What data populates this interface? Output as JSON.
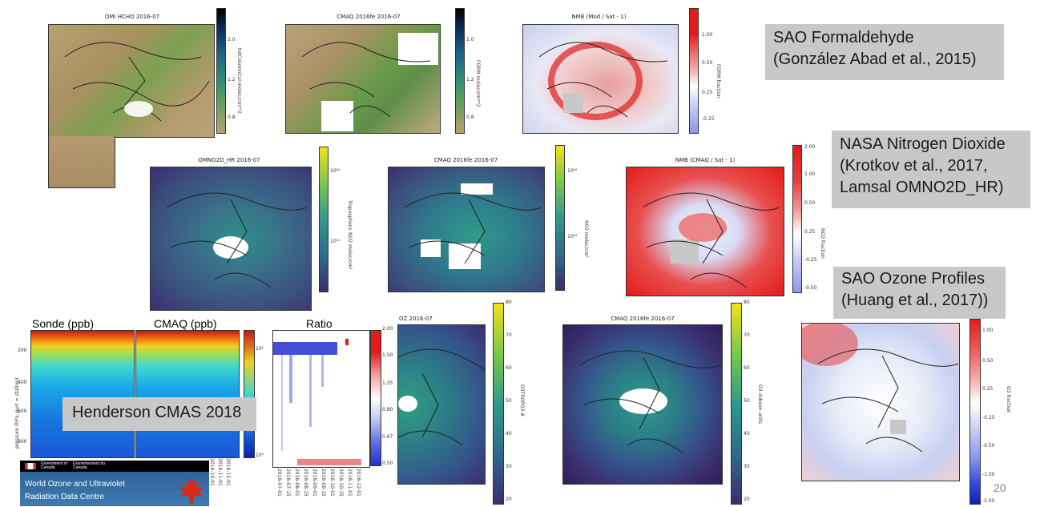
{
  "slide": {
    "page_number": "20"
  },
  "labels": {
    "hcho_title": "SAO Formaldehyde",
    "hcho_cite": "(González Abad et al., 2015)",
    "no2_title": "NASA Nitrogen Dioxide",
    "no2_cite1": "(Krotkov et al., 2017,",
    "no2_cite2": "Lamsal OMNO2D_HR)",
    "o3_title": "SAO Ozone Profiles",
    "o3_cite": "(Huang et al., 2017))",
    "henderson": "Henderson CMAS 2018"
  },
  "panels": {
    "omi_hcho": {
      "title": "OMI HCHO 2016-07",
      "cb_label": "totColumnCol molec/cm**2",
      "ticks": [
        "2.0",
        "1.2",
        "0.8"
      ]
    },
    "cmaq_hcho": {
      "title": "CMAQ 2016fe 2016-07",
      "cb_label": "FORM molec/cm**2",
      "ticks": [
        "2.0",
        "1.2",
        "0.8"
      ]
    },
    "nmb_hcho": {
      "title": "NMB (Mod / Sat - 1)",
      "cb_label": "FORM fraction",
      "ticks": [
        "1.00",
        "0.50",
        "0.25",
        "-0.25"
      ]
    },
    "omno2d": {
      "title": "OMNO2D_HR 2016-07",
      "cb_label": "Tropospheric NO2 molec/cm²",
      "ticks": [
        "10¹⁶",
        "10¹⁵"
      ]
    },
    "cmaq_no2": {
      "title": "CMAQ 2016fe 2016-07",
      "cb_label": "NO2 molec/cm²",
      "ticks": [
        "10¹⁶",
        "10¹⁵"
      ]
    },
    "nmb_no2": {
      "title": "NMB (CMAQ / Sat - 1)",
      "cb_label": "NO2 fraction",
      "ticks": [
        "2.00",
        "1.00",
        "0.50",
        "0.25",
        "-0.25",
        "-0.50"
      ]
    },
    "omo3": {
      "title": "OZ 2016-07",
      "cb_label": "O3TROPO3 #",
      "ticks": [
        "80",
        "70",
        "60",
        "50",
        "40",
        "30",
        "20"
      ]
    },
    "cmaq_o3": {
      "title": "CMAQ 2016fe 2016-07",
      "cb_label": "O3 dobson units",
      "ticks": [
        "80",
        "70",
        "60",
        "50",
        "40",
        "30",
        "20"
      ]
    },
    "o3_ratio": {
      "cb_label": "O3 fraction",
      "ticks": [
        "1.00",
        "0.50",
        "0.25",
        "-0.25",
        "-0.50",
        "-1.00",
        "-2.00"
      ]
    }
  },
  "sonde": {
    "title1": "Sonde (ppb)",
    "title2": "CMAQ (ppb)",
    "title3": "Ratio",
    "ylabel": "pressure (hPa, purl = station)",
    "yticks": [
      "200",
      "400",
      "600",
      "800"
    ],
    "cb_ticks": [
      "10¹",
      "10⁰"
    ],
    "ratio_ticks": [
      "2.00",
      "1.50",
      "1.25",
      "0.80",
      "0.67",
      "0.50"
    ],
    "xticks": [
      "2016-07-01",
      "2016-07-15",
      "2016-08-01",
      "2016-08-15",
      "2016-09-01",
      "2016-09-15",
      "2016-10-01",
      "2016-10-15",
      "2016-11-01",
      "2016-12-01"
    ],
    "xticks_short": [
      "2016-10-01",
      "2016-11-01",
      "2016-12-01"
    ]
  },
  "logo": {
    "gov_en": "Government of Canada",
    "gov_fr": "Gouvernement du Canada",
    "line1": "World Ozone and Ultraviolet",
    "line2": "Radiation Data Centre"
  },
  "colors": {
    "tan": "#b69a72",
    "green": "#6a9a4a",
    "viridis_dark": "#3b2e6e",
    "viridis_mid": "#2f8f88",
    "red": "#e31b1b",
    "blue": "#3a4fd8",
    "note_bg": "#c8c8c8"
  }
}
